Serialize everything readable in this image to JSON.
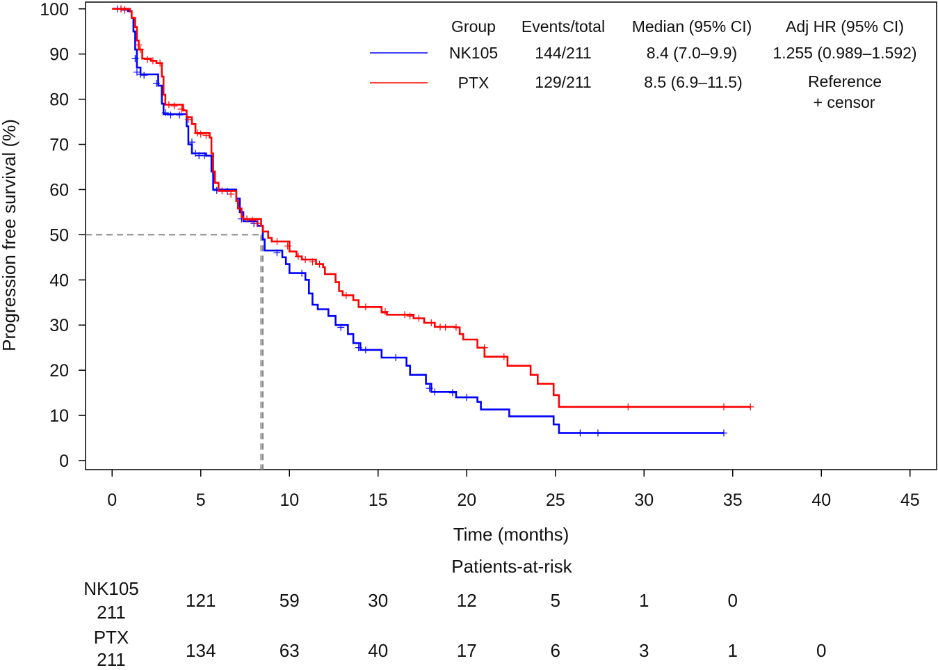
{
  "chart_data": {
    "type": "line",
    "subtype": "kaplan-meier",
    "xlabel": "Time (months)",
    "ylabel": "Progression free survival (%)",
    "xlim": [
      -1.5,
      46.5
    ],
    "ylim": [
      -2,
      101.5
    ],
    "xticks": [
      0,
      5,
      10,
      15,
      20,
      25,
      30,
      35,
      40,
      45
    ],
    "yticks": [
      0,
      10,
      20,
      30,
      40,
      50,
      60,
      70,
      80,
      90,
      100
    ],
    "median_line": {
      "y": 50,
      "x_values": [
        8.4,
        8.5
      ]
    },
    "series": [
      {
        "name": "NK105",
        "color": "#0000ff",
        "steps": [
          [
            0,
            100
          ],
          [
            0.9,
            99.5
          ],
          [
            1.1,
            98
          ],
          [
            1.2,
            95
          ],
          [
            1.3,
            91
          ],
          [
            1.4,
            87
          ],
          [
            1.6,
            85.5
          ],
          [
            2.6,
            83
          ],
          [
            2.8,
            79
          ],
          [
            2.9,
            76.7
          ],
          [
            4.2,
            74
          ],
          [
            4.3,
            70
          ],
          [
            4.5,
            68
          ],
          [
            5.3,
            67.5
          ],
          [
            5.6,
            64
          ],
          [
            5.7,
            60
          ],
          [
            7.0,
            58
          ],
          [
            7.2,
            55
          ],
          [
            7.4,
            53
          ],
          [
            8.2,
            52
          ],
          [
            8.5,
            49
          ],
          [
            8.6,
            46.5
          ],
          [
            9.6,
            45
          ],
          [
            9.8,
            43.5
          ],
          [
            10.0,
            41.5
          ],
          [
            10.9,
            40
          ],
          [
            11.1,
            37
          ],
          [
            11.3,
            34.5
          ],
          [
            11.6,
            33.5
          ],
          [
            12.2,
            32
          ],
          [
            12.6,
            30
          ],
          [
            13.3,
            28
          ],
          [
            13.6,
            26
          ],
          [
            14.0,
            24.5
          ],
          [
            15.2,
            22.8
          ],
          [
            16.6,
            21
          ],
          [
            16.8,
            19
          ],
          [
            17.7,
            17
          ],
          [
            18.0,
            15.2
          ],
          [
            19.4,
            14.0
          ],
          [
            20.6,
            13.0
          ],
          [
            20.8,
            11.3
          ],
          [
            22.4,
            9.8
          ],
          [
            24.9,
            8.0
          ],
          [
            25.2,
            6.1
          ],
          [
            34.5,
            6.1
          ]
        ],
        "censor": [
          [
            0.3,
            100
          ],
          [
            0.5,
            100
          ],
          [
            0.7,
            99.7
          ],
          [
            1.3,
            89
          ],
          [
            1.4,
            86
          ],
          [
            1.6,
            85.5
          ],
          [
            1.8,
            85.3
          ],
          [
            2.5,
            83.5
          ],
          [
            3.0,
            77
          ],
          [
            3.3,
            76.5
          ],
          [
            3.8,
            76.5
          ],
          [
            4.5,
            70.5
          ],
          [
            4.7,
            68
          ],
          [
            4.9,
            67.5
          ],
          [
            5.2,
            67.5
          ],
          [
            5.9,
            59.8
          ],
          [
            6.5,
            59.6
          ],
          [
            7.3,
            53.5
          ],
          [
            8.0,
            52.5
          ],
          [
            9.3,
            46
          ],
          [
            10.7,
            41.5
          ],
          [
            12.9,
            29.5
          ],
          [
            13.9,
            25
          ],
          [
            14.3,
            24.5
          ],
          [
            16.0,
            22.8
          ],
          [
            17.9,
            16
          ],
          [
            18.2,
            15.2
          ],
          [
            19.2,
            15.0
          ],
          [
            20.0,
            14
          ],
          [
            26.4,
            6.1
          ],
          [
            27.4,
            6.1
          ],
          [
            34.5,
            6.1
          ]
        ]
      },
      {
        "name": "PTX",
        "color": "#ff0000",
        "steps": [
          [
            0,
            100
          ],
          [
            1.0,
            99.4
          ],
          [
            1.1,
            98
          ],
          [
            1.3,
            96
          ],
          [
            1.4,
            93
          ],
          [
            1.5,
            91
          ],
          [
            1.7,
            89
          ],
          [
            2.2,
            88.5
          ],
          [
            2.5,
            88
          ],
          [
            2.8,
            85
          ],
          [
            2.9,
            81
          ],
          [
            3.0,
            78.8
          ],
          [
            4.0,
            77.5
          ],
          [
            4.2,
            76
          ],
          [
            4.5,
            74.5
          ],
          [
            4.7,
            72.5
          ],
          [
            5.5,
            71.5
          ],
          [
            5.6,
            68
          ],
          [
            5.7,
            64
          ],
          [
            5.8,
            61.5
          ],
          [
            6.0,
            59.7
          ],
          [
            7.0,
            57.5
          ],
          [
            7.1,
            55.8
          ],
          [
            7.3,
            54
          ],
          [
            7.4,
            53.5
          ],
          [
            8.4,
            52
          ],
          [
            8.5,
            50.7
          ],
          [
            8.8,
            49.3
          ],
          [
            9.0,
            48.5
          ],
          [
            10.0,
            46.3
          ],
          [
            10.4,
            45.2
          ],
          [
            10.7,
            44.5
          ],
          [
            11.5,
            43.5
          ],
          [
            11.9,
            42.8
          ],
          [
            12.0,
            41.3
          ],
          [
            12.6,
            39.5
          ],
          [
            12.8,
            37.5
          ],
          [
            13.0,
            36.6
          ],
          [
            13.6,
            35.5
          ],
          [
            13.9,
            34.0
          ],
          [
            15.2,
            32.8
          ],
          [
            15.5,
            32.3
          ],
          [
            17.0,
            31.5
          ],
          [
            17.6,
            30.5
          ],
          [
            18.2,
            29.6
          ],
          [
            19.3,
            29.5
          ],
          [
            19.6,
            28.0
          ],
          [
            19.8,
            26.8
          ],
          [
            20.6,
            25.0
          ],
          [
            21.0,
            23.0
          ],
          [
            22.3,
            21.0
          ],
          [
            23.6,
            19.0
          ],
          [
            24.0,
            17.0
          ],
          [
            24.9,
            14.5
          ],
          [
            25.2,
            11.9
          ],
          [
            36.0,
            11.9
          ]
        ],
        "censor": [
          [
            0.5,
            100
          ],
          [
            0.7,
            99.8
          ],
          [
            1.5,
            92
          ],
          [
            1.6,
            91
          ],
          [
            2.0,
            88.8
          ],
          [
            2.3,
            88.5
          ],
          [
            2.7,
            88
          ],
          [
            3.2,
            78.8
          ],
          [
            3.5,
            78.5
          ],
          [
            3.9,
            77.8
          ],
          [
            4.3,
            75.5
          ],
          [
            4.8,
            72.5
          ],
          [
            5.0,
            72.3
          ],
          [
            5.3,
            72
          ],
          [
            6.2,
            59.7
          ],
          [
            6.7,
            59
          ],
          [
            7.6,
            53.5
          ],
          [
            7.9,
            53.2
          ],
          [
            8.2,
            52.5
          ],
          [
            9.3,
            48.5
          ],
          [
            9.9,
            47.5
          ],
          [
            10.5,
            45.2
          ],
          [
            10.9,
            44.5
          ],
          [
            11.3,
            44
          ],
          [
            11.7,
            43.5
          ],
          [
            13.2,
            36.5
          ],
          [
            14.3,
            34.0
          ],
          [
            15.4,
            33
          ],
          [
            16.5,
            32.3
          ],
          [
            16.8,
            32
          ],
          [
            17.3,
            31.5
          ],
          [
            18.0,
            30.5
          ],
          [
            18.5,
            29.6
          ],
          [
            18.8,
            29.5
          ],
          [
            19.4,
            29.5
          ],
          [
            21.0,
            25
          ],
          [
            22.1,
            23.0
          ],
          [
            29.1,
            11.9
          ],
          [
            34.5,
            11.9
          ],
          [
            36.0,
            11.9
          ]
        ]
      }
    ],
    "legend": {
      "placement": "top-right",
      "headers": [
        "Group",
        "Events/total",
        "Median (95% CI)",
        "Adj HR (95% CI)"
      ],
      "rows": [
        {
          "group": "NK105",
          "events": "144/211",
          "median": "8.4 (7.0–9.9)",
          "hr": "1.255 (0.989–1.592)"
        },
        {
          "group": "PTX",
          "events": "129/211",
          "median": "8.5 (6.9–11.5)",
          "hr": "Reference"
        }
      ],
      "censor_note": "+ censor"
    },
    "at_risk": {
      "title": "Patients-at-risk",
      "times": [
        5,
        10,
        15,
        20,
        25,
        30,
        35,
        40
      ],
      "rows": [
        {
          "name": "NK105",
          "n0": "211",
          "counts": [
            "121",
            "59",
            "30",
            "12",
            "5",
            "1",
            "0",
            ""
          ]
        },
        {
          "name": "PTX",
          "n0": "211",
          "counts": [
            "134",
            "63",
            "40",
            "17",
            "6",
            "3",
            "1",
            "0"
          ]
        }
      ]
    }
  }
}
